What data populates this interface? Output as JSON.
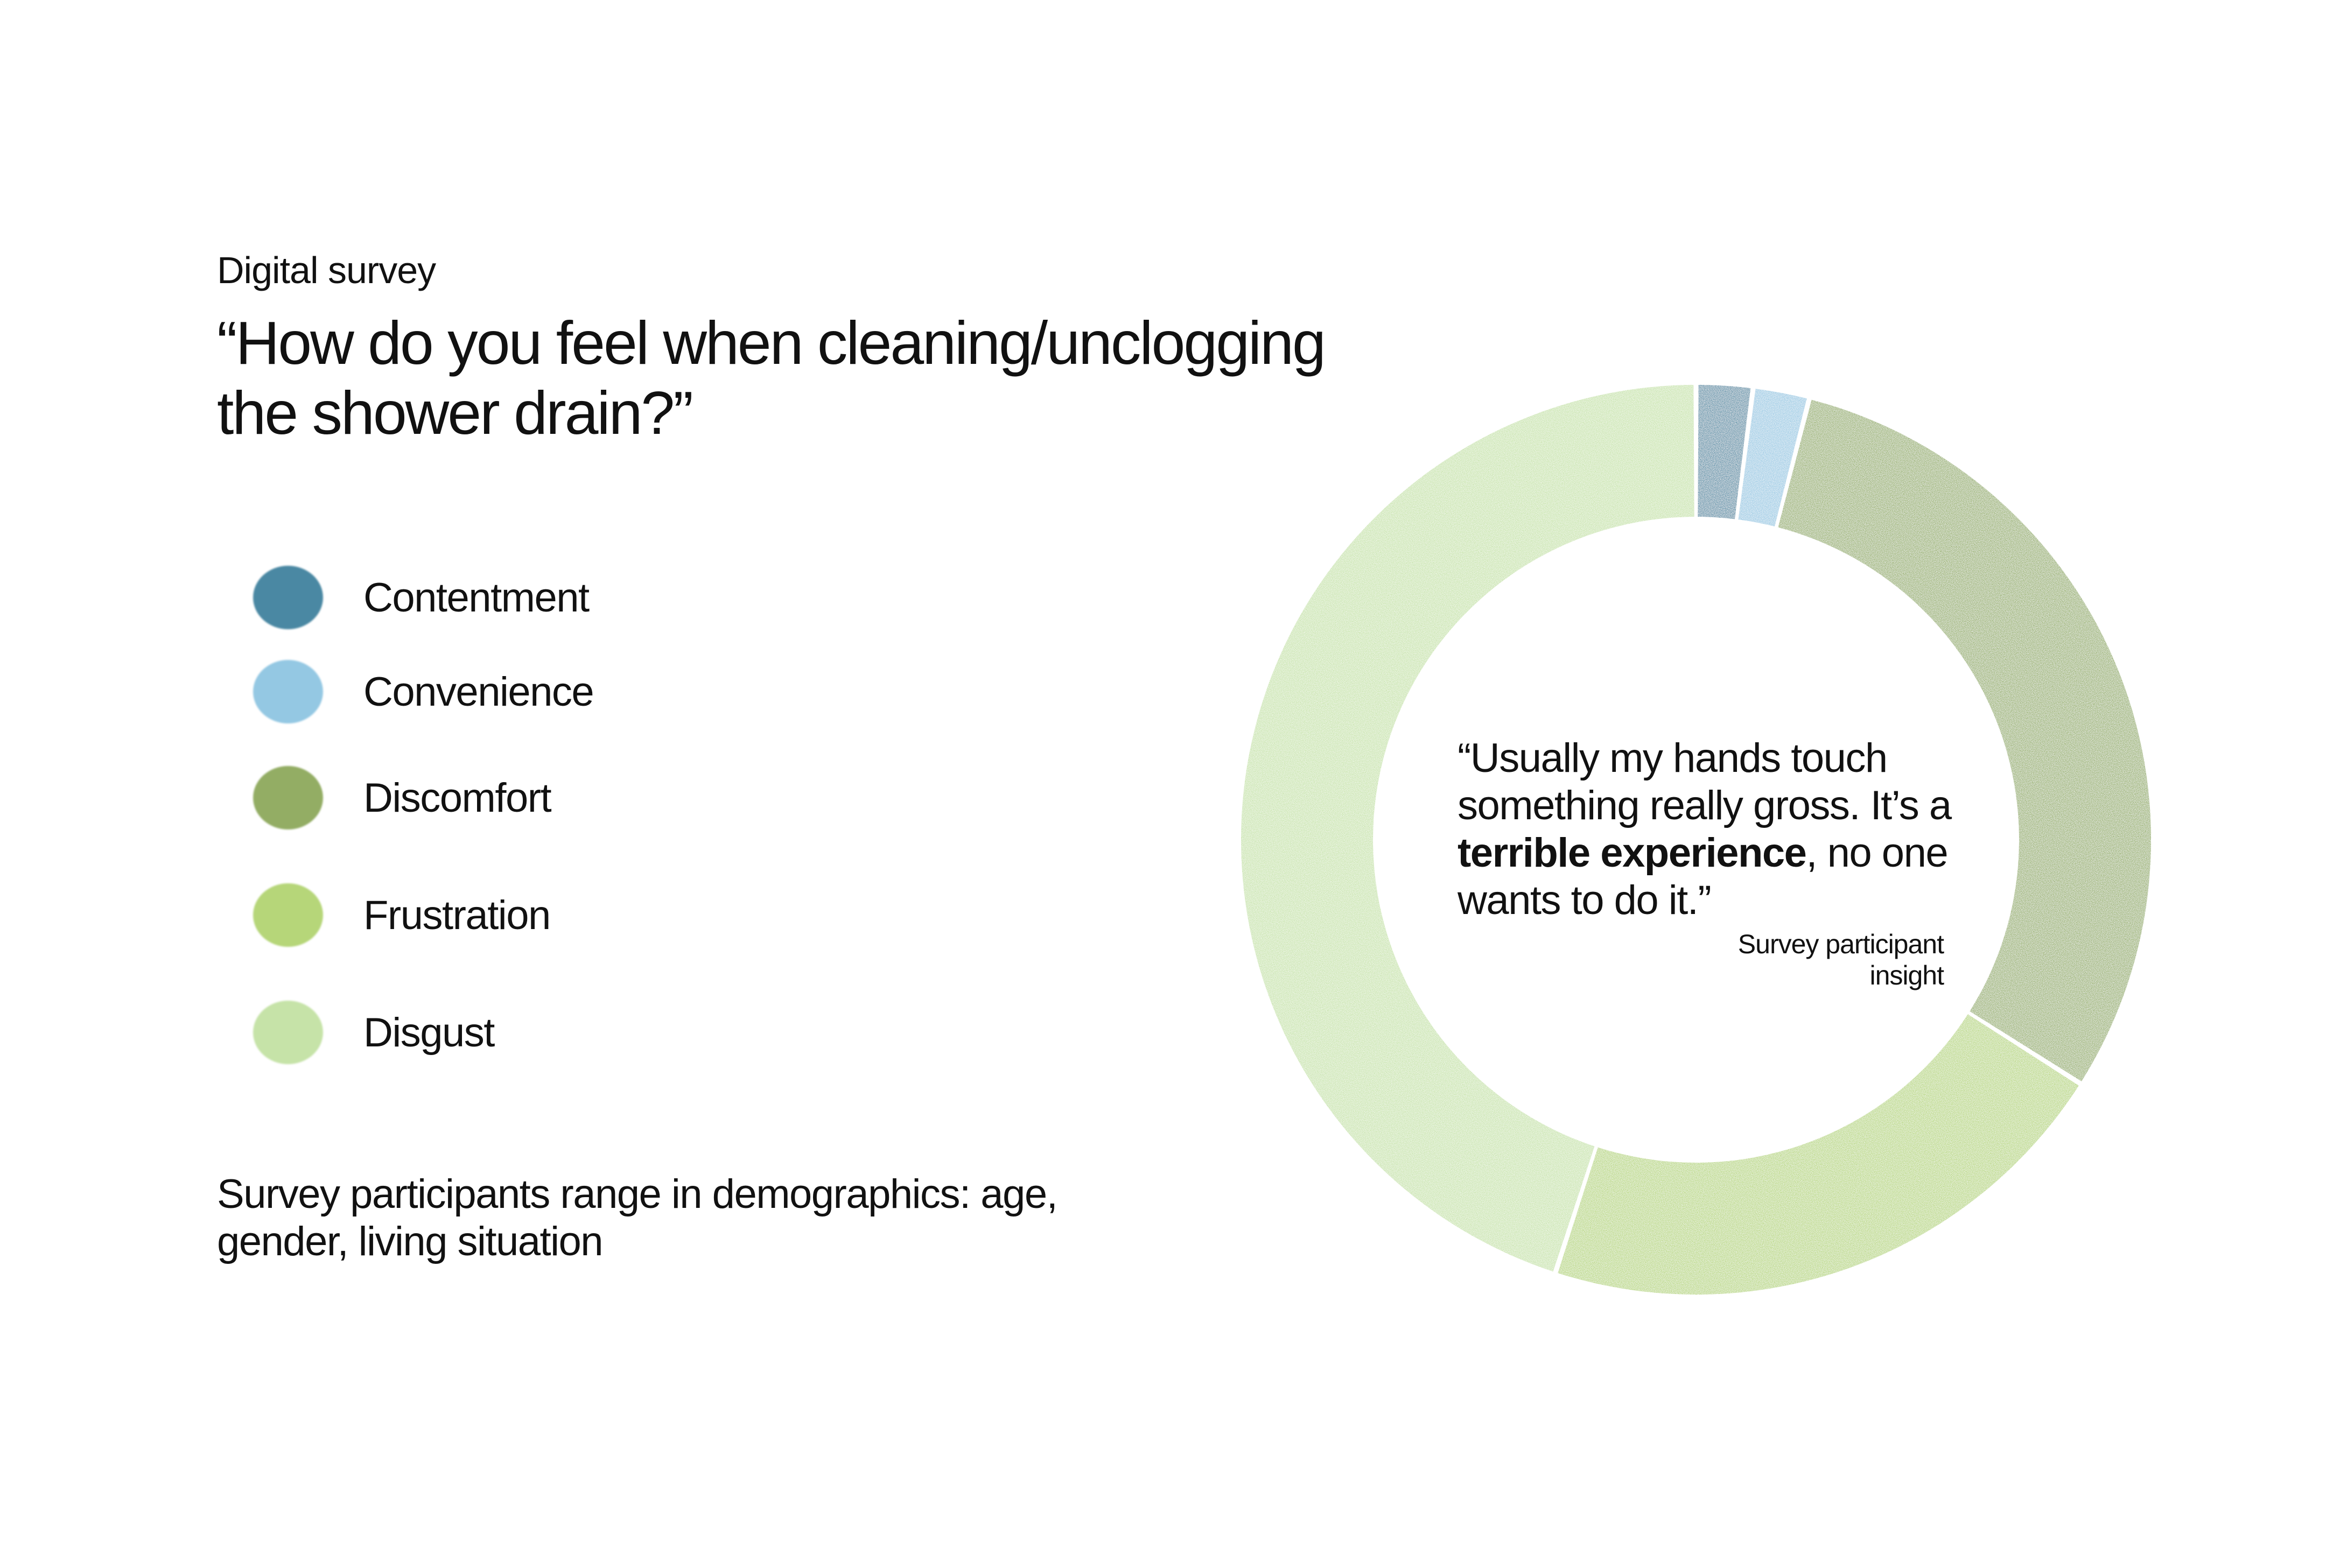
{
  "header": {
    "eyebrow": "Digital survey",
    "question": "“How do you feel when cleaning/unclogging the shower drain?”"
  },
  "legend": [
    {
      "label": "Contentment",
      "color": "#4a88a3"
    },
    {
      "label": "Convenience",
      "color": "#94c8e3"
    },
    {
      "label": "Discomfort",
      "color": "#93ad64"
    },
    {
      "label": "Frustration",
      "color": "#b6d679"
    },
    {
      "label": "Disgust",
      "color": "#c6e3a8"
    }
  ],
  "footnote": "Survey participants range in demographics: age, gender, living situation",
  "quote": {
    "before": "“Usually my hands touch something really gross. It’s a ",
    "bold": "terrible experience",
    "after": ", no one wants to do it.”",
    "source": "Survey participant insight"
  },
  "chart_data": {
    "type": "donut",
    "start_angle_deg": 0,
    "direction": "clockwise",
    "series": [
      {
        "name": "Contentment",
        "value": 2,
        "color": "#4a88a3"
      },
      {
        "name": "Convenience",
        "value": 2,
        "color": "#94c8e3"
      },
      {
        "name": "Discomfort",
        "value": 30,
        "color": "#93ad64"
      },
      {
        "name": "Frustration",
        "value": 21,
        "color": "#b6d679"
      },
      {
        "name": "Disgust",
        "value": 45,
        "color": "#c6e3a8"
      }
    ]
  }
}
